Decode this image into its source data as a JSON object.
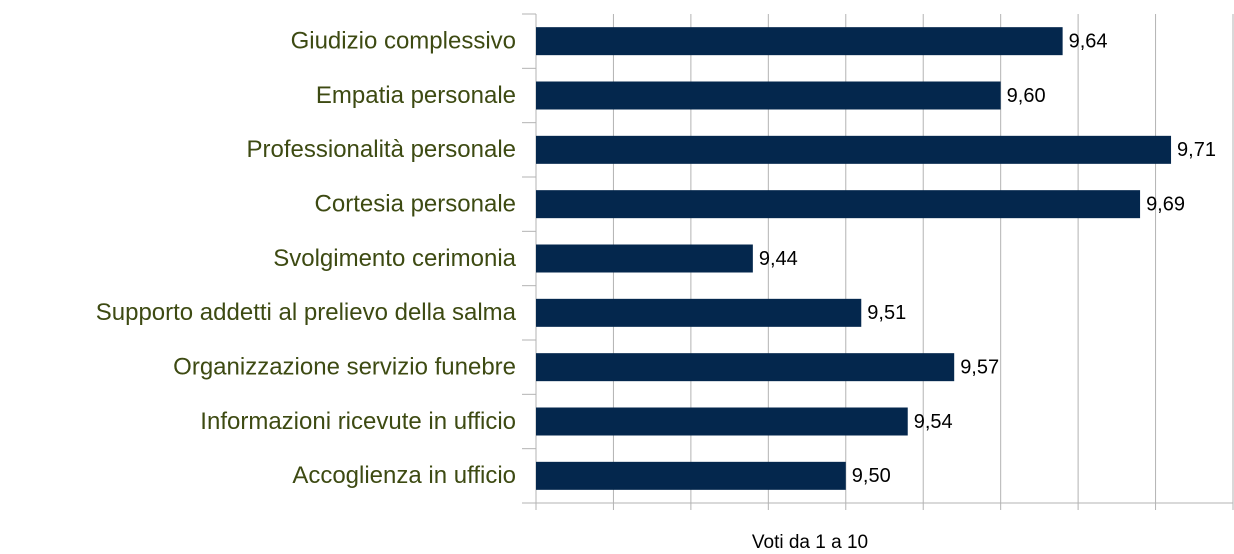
{
  "chart_data": {
    "type": "bar",
    "orientation": "horizontal",
    "categories": [
      "Giudizio complessivo",
      "Empatia personale",
      "Professionalità personale",
      "Cortesia personale",
      "Svolgimento cerimonia",
      "Supporto addetti al prelievo della salma",
      "Organizzazione servizio funebre",
      "Informazioni ricevute in ufficio",
      "Accoglienza in ufficio"
    ],
    "values": [
      9.64,
      9.6,
      9.71,
      9.69,
      9.44,
      9.51,
      9.57,
      9.54,
      9.5
    ],
    "value_labels": [
      "9,64",
      "9,60",
      "9,71",
      "9,69",
      "9,44",
      "9,51",
      "9,57",
      "9,54",
      "9,50"
    ],
    "color": "#04274d",
    "xlabel": "Voti da 1 a 10",
    "xlim": [
      9.3,
      9.75
    ],
    "xticks": [
      9.3,
      9.35,
      9.4,
      9.45,
      9.5,
      9.55,
      9.6,
      9.65,
      9.7,
      9.75
    ],
    "grid": true
  }
}
